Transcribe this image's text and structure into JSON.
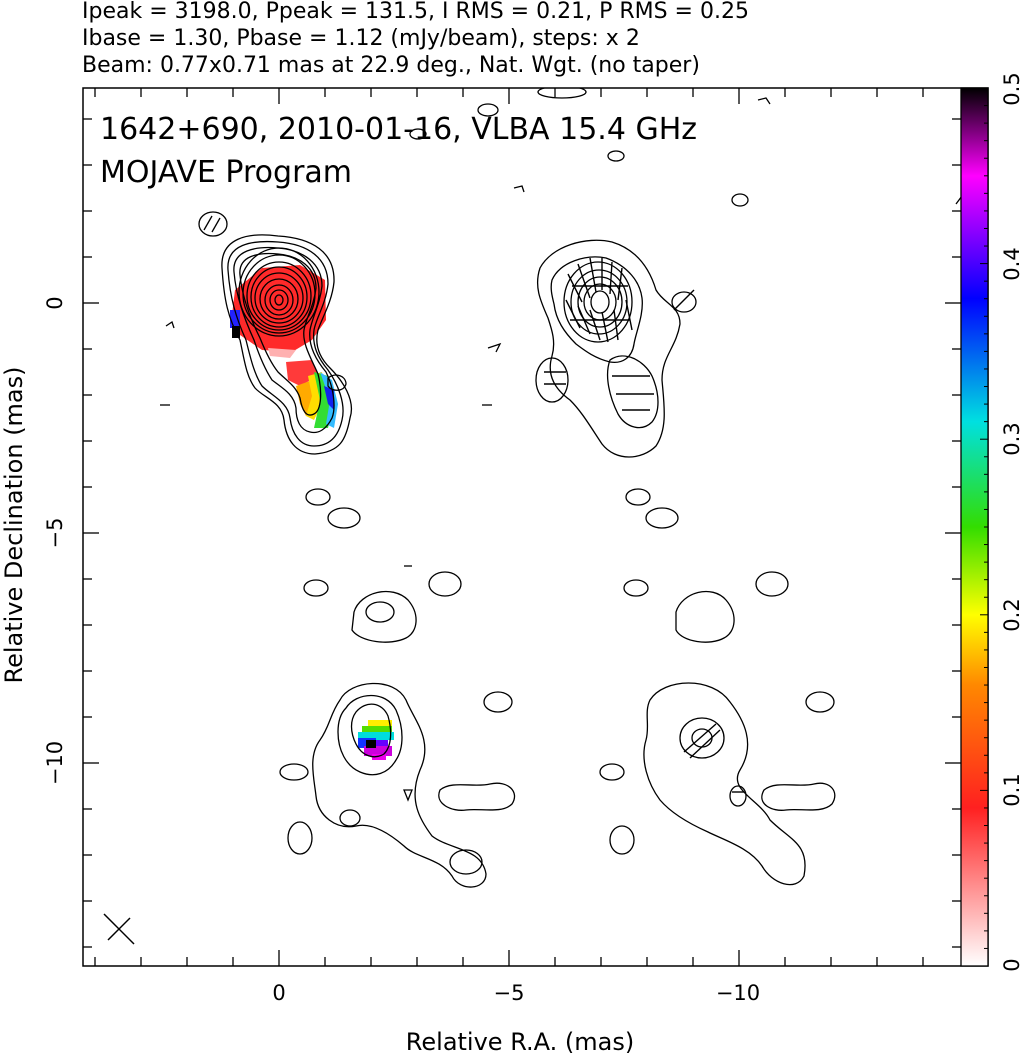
{
  "header": {
    "line1": "Ipeak = 3198.0, Ppeak = 131.5, I RMS = 0.21, P RMS = 0.25",
    "line2": "Ibase = 1.30, Pbase = 1.12 (mJy/beam), steps: x 2",
    "line3": "Beam: 0.77x0.71 mas at 22.9 deg., Nat. Wgt. (no taper)"
  },
  "plot": {
    "source_line": "1642+690, 2010-01-16, VLBA 15.4 GHz",
    "program_line": "MOJAVE Program",
    "xlabel": "Relative R.A. (mas)",
    "ylabel": "Relative Declination (mas)",
    "x_ticks": [
      "0",
      "−5",
      "−10"
    ],
    "y_ticks": [
      "0",
      "−5",
      "−10"
    ],
    "colorbar_ticks": [
      "0",
      "0.1",
      "0.2",
      "0.3",
      "0.4",
      "0.5"
    ],
    "colorbar_range": [
      0,
      0.5
    ]
  },
  "colors": {
    "contour": "#000000",
    "colormap": [
      "#ffffff",
      "#ff3030",
      "#ff8800",
      "#ffff00",
      "#44dd00",
      "#00e0e0",
      "#0000ff",
      "#ff00ff",
      "#000000"
    ]
  }
}
